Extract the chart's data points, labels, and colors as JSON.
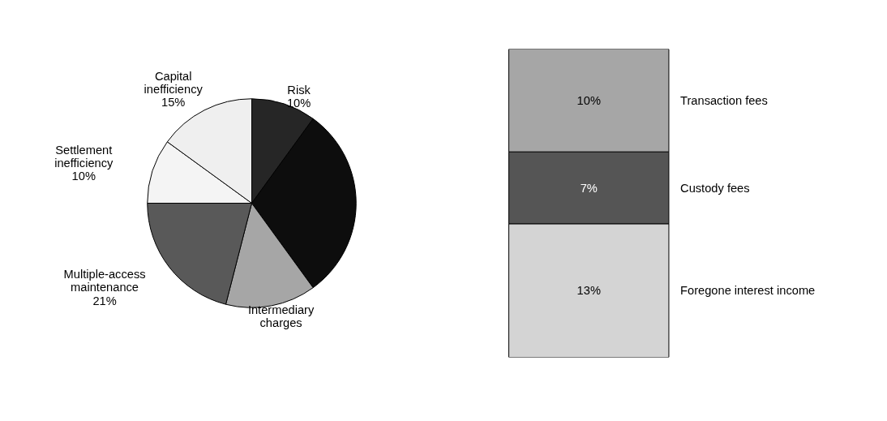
{
  "chart_data": [
    {
      "type": "pie",
      "categories": [
        "Risk",
        null,
        "Intermediary charges",
        "Multiple-access maintenance",
        "Settlement inefficiency",
        "Capital inefficiency"
      ],
      "values": [
        10,
        30,
        14,
        21,
        10,
        15
      ],
      "colors": [
        "#262626",
        "#0d0d0d",
        "#a6a6a6",
        "#595959",
        "#f4f4f4",
        "#efefef"
      ],
      "value_labels": [
        "10%",
        null,
        null,
        "21%",
        "10%",
        "15%"
      ]
    },
    {
      "type": "bar",
      "stacked": true,
      "categories": [
        null
      ],
      "tick_labels": false,
      "series": [
        {
          "name": "Foregone interest income",
          "color": "#d4d4d4",
          "values": [
            13
          ],
          "value_labels": [
            "13%"
          ]
        },
        {
          "name": "Custody fees",
          "color": "#555555",
          "values": [
            7
          ],
          "value_labels": [
            "7%"
          ]
        },
        {
          "name": "Transaction fees",
          "color": "#a6a6a6",
          "values": [
            10
          ],
          "value_labels": [
            "10%"
          ]
        }
      ]
    }
  ]
}
